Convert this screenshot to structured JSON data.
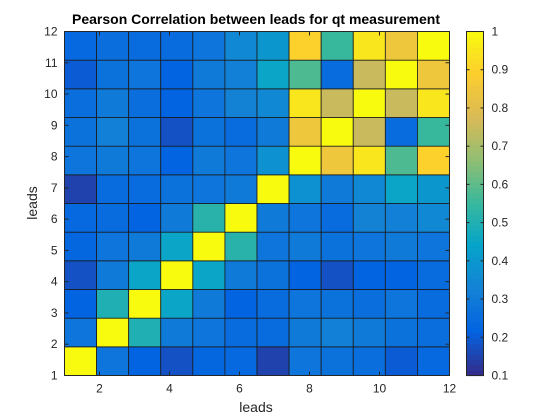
{
  "chart_data": {
    "type": "heatmap",
    "title": "Pearson Correlation between leads for qt measurement",
    "xlabel": "leads",
    "ylabel": "leads",
    "xlim": [
      1,
      12
    ],
    "ylim": [
      1,
      12
    ],
    "x_ticks": [
      "2",
      "4",
      "6",
      "8",
      "10",
      "12"
    ],
    "y_ticks": [
      "1",
      "2",
      "3",
      "4",
      "5",
      "6",
      "7",
      "8",
      "9",
      "10",
      "11",
      "12"
    ],
    "colormap": "parula",
    "clim": [
      0.1,
      1
    ],
    "colorbar_ticks": [
      "0.1",
      "0.2",
      "0.3",
      "0.4",
      "0.5",
      "0.6",
      "0.7",
      "0.8",
      "0.9",
      "1"
    ],
    "colorbar_location": "right",
    "values": [
      [
        1.0,
        0.28,
        0.22,
        0.18,
        0.23,
        0.24,
        0.15,
        0.28,
        0.27,
        0.26,
        0.2,
        0.24
      ],
      [
        0.28,
        1.0,
        0.5,
        0.3,
        0.28,
        0.25,
        0.25,
        0.3,
        0.32,
        0.3,
        0.27,
        0.26
      ],
      [
        0.22,
        0.5,
        1.0,
        0.45,
        0.3,
        0.22,
        0.25,
        0.28,
        0.27,
        0.26,
        0.28,
        0.25
      ],
      [
        0.18,
        0.3,
        0.45,
        1.0,
        0.45,
        0.3,
        0.27,
        0.22,
        0.18,
        0.22,
        0.22,
        0.25
      ],
      [
        0.23,
        0.28,
        0.3,
        0.45,
        1.0,
        0.52,
        0.28,
        0.3,
        0.27,
        0.28,
        0.3,
        0.28
      ],
      [
        0.24,
        0.25,
        0.22,
        0.3,
        0.52,
        1.0,
        0.3,
        0.28,
        0.25,
        0.33,
        0.32,
        0.35
      ],
      [
        0.15,
        0.25,
        0.25,
        0.27,
        0.28,
        0.3,
        1.0,
        0.38,
        0.3,
        0.35,
        0.45,
        0.4
      ],
      [
        0.28,
        0.3,
        0.28,
        0.22,
        0.3,
        0.28,
        0.38,
        1.0,
        0.85,
        0.95,
        0.58,
        0.9
      ],
      [
        0.27,
        0.32,
        0.27,
        0.18,
        0.27,
        0.25,
        0.3,
        0.85,
        1.0,
        0.75,
        0.25,
        0.55
      ],
      [
        0.26,
        0.3,
        0.26,
        0.22,
        0.28,
        0.33,
        0.35,
        0.95,
        0.75,
        1.0,
        0.75,
        0.95
      ],
      [
        0.2,
        0.27,
        0.28,
        0.22,
        0.3,
        0.32,
        0.45,
        0.58,
        0.25,
        0.75,
        1.0,
        0.85
      ],
      [
        0.24,
        0.26,
        0.25,
        0.25,
        0.28,
        0.35,
        0.4,
        0.9,
        0.55,
        0.95,
        0.85,
        1.0
      ]
    ]
  }
}
